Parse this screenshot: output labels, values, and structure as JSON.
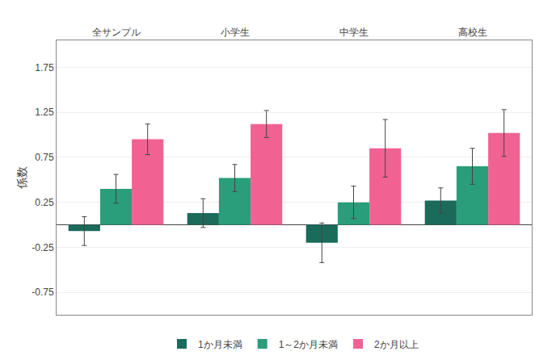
{
  "chart_data": {
    "type": "bar",
    "categories": [
      "全サンプル",
      "小学生",
      "中学生",
      "高校生"
    ],
    "series": [
      {
        "name": "1か月未満",
        "color": "#1a6b5a",
        "values": [
          -0.07,
          0.13,
          -0.2,
          0.27
        ],
        "errors": [
          0.16,
          0.16,
          0.22,
          0.14
        ]
      },
      {
        "name": "1～2か月未満",
        "color": "#2a9d7a",
        "values": [
          0.4,
          0.52,
          0.25,
          0.65
        ],
        "errors": [
          0.16,
          0.15,
          0.18,
          0.2
        ]
      },
      {
        "name": "2か月以上",
        "color": "#f06292",
        "values": [
          0.95,
          1.12,
          0.85,
          1.02
        ],
        "errors": [
          0.17,
          0.15,
          0.32,
          0.26
        ]
      }
    ],
    "ylabel": "係数",
    "ylim": [
      -1.0,
      2.05
    ],
    "yticks": [
      -0.75,
      -0.25,
      0.25,
      0.75,
      1.25,
      1.75
    ],
    "grid": true,
    "legend": "bottom"
  }
}
